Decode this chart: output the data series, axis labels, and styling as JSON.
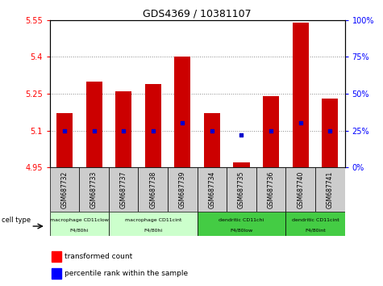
{
  "title": "GDS4369 / 10381107",
  "samples": [
    "GSM687732",
    "GSM687733",
    "GSM687737",
    "GSM687738",
    "GSM687739",
    "GSM687734",
    "GSM687735",
    "GSM687736",
    "GSM687740",
    "GSM687741"
  ],
  "transformed_counts": [
    5.17,
    5.3,
    5.26,
    5.29,
    5.4,
    5.17,
    4.97,
    5.24,
    5.54,
    5.23
  ],
  "percentile_ranks": [
    25,
    25,
    25,
    25,
    30,
    25,
    22,
    25,
    30,
    25
  ],
  "ylim_left": [
    4.95,
    5.55
  ],
  "ylim_right": [
    0,
    100
  ],
  "yticks_left": [
    4.95,
    5.1,
    5.25,
    5.4,
    5.55
  ],
  "yticks_right": [
    0,
    25,
    50,
    75,
    100
  ],
  "bar_color": "#cc0000",
  "dot_color": "#0000cc",
  "bar_bottom": 4.95,
  "cell_types": [
    {
      "label": "macrophage CD11clow F4/80hi",
      "start": 0,
      "end": 2,
      "color": "#ccffcc"
    },
    {
      "label": "macrophage CD11cint F4/80hi",
      "start": 2,
      "end": 5,
      "color": "#ccffcc"
    },
    {
      "label": "dendritic CD11chi F4/80low",
      "start": 5,
      "end": 8,
      "color": "#44cc44"
    },
    {
      "label": "dendritic CD11cint F4/80int",
      "start": 8,
      "end": 10,
      "color": "#44cc44"
    }
  ],
  "legend_tc_label": "transformed count",
  "legend_pr_label": "percentile rank within the sample",
  "cell_type_label": "cell type",
  "xtick_bg_color": "#cccccc",
  "fig_bg_color": "#ffffff"
}
